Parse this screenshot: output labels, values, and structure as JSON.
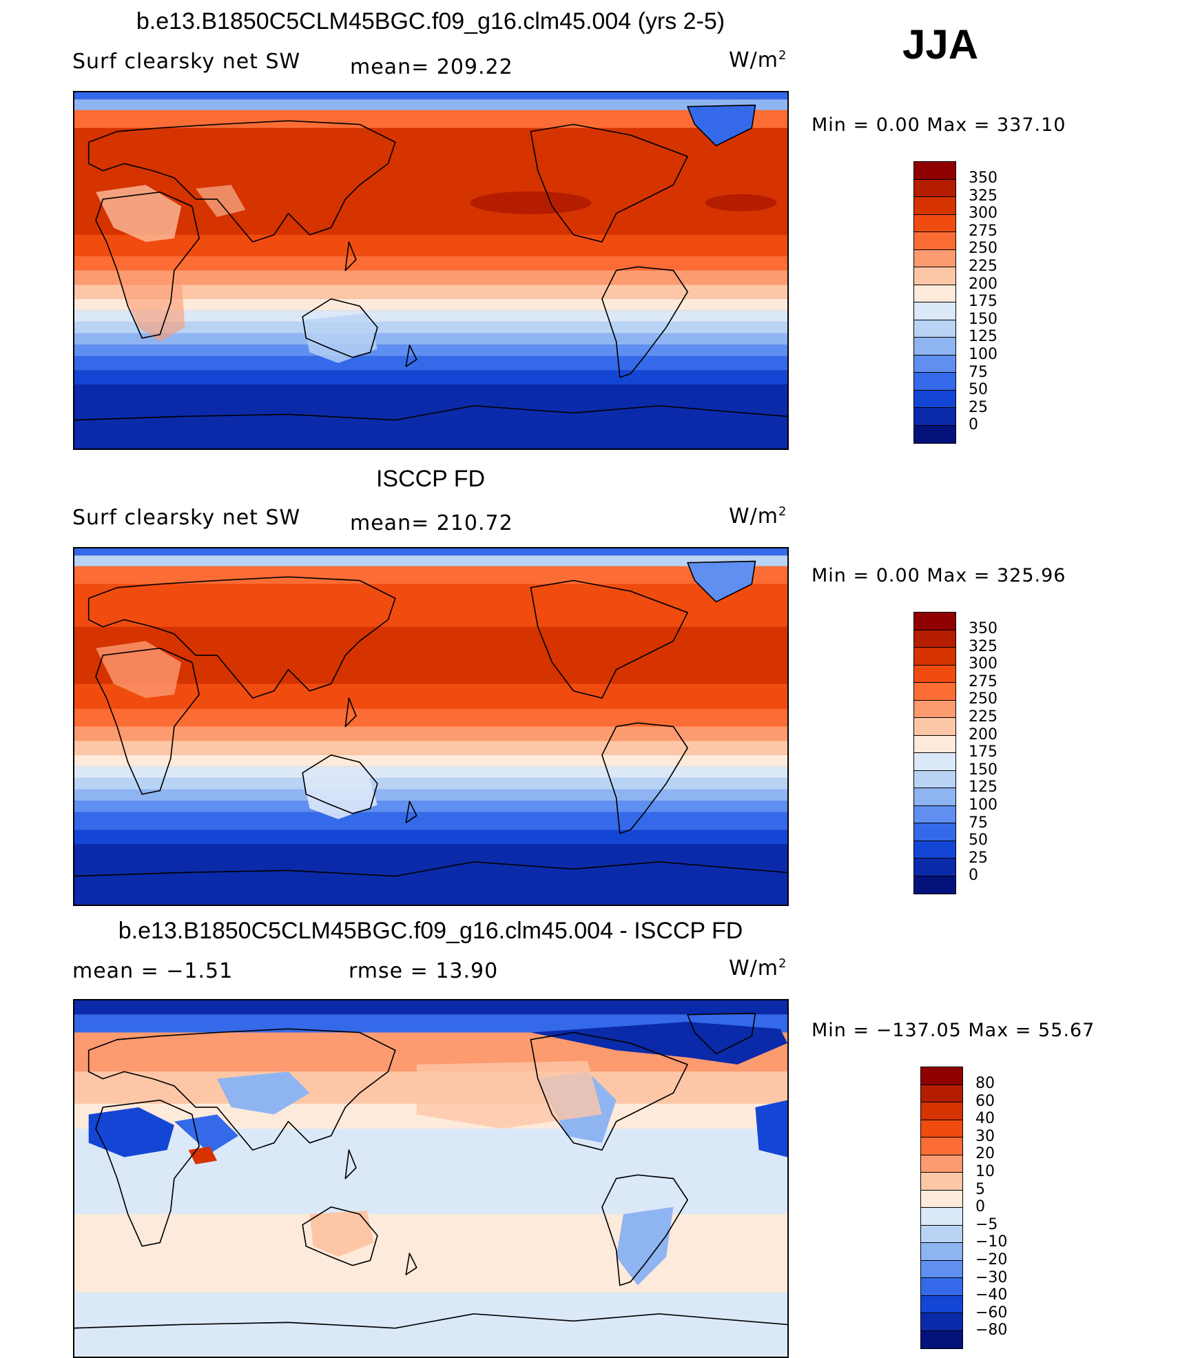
{
  "season": "JJA",
  "units_base": "W/m",
  "units_exp": "2",
  "panels": [
    {
      "title": "b.e13.B1850C5CLM45BGC.f09_g16.clm45.004 (yrs 2-5)",
      "left_label": "Surf  clearsky  net  SW",
      "center_label": "mean=  209.22",
      "minmax": "Min  =     0.00  Max  =  337.10",
      "colorbar_labels": [
        "350",
        "325",
        "300",
        "275",
        "250",
        "225",
        "200",
        "175",
        "150",
        "125",
        "100",
        "75",
        "50",
        "25",
        "0"
      ],
      "colorbar_colors": [
        "#8f0000",
        "#b51d00",
        "#d53300",
        "#f04c10",
        "#fb6d35",
        "#fc9a70",
        "#fdc7a7",
        "#fdeadb",
        "#dbe8f8",
        "#b9d3f5",
        "#8fb4f2",
        "#5f8ff0",
        "#346aea",
        "#1446d6",
        "#0a2aaa",
        "#03127a"
      ]
    },
    {
      "title": "ISCCP FD",
      "left_label": "Surf  clearsky  net  SW",
      "center_label": "mean=  210.72",
      "minmax": "Min  =     0.00  Max  =  325.96",
      "colorbar_labels": [
        "350",
        "325",
        "300",
        "275",
        "250",
        "225",
        "200",
        "175",
        "150",
        "125",
        "100",
        "75",
        "50",
        "25",
        "0"
      ],
      "colorbar_colors": [
        "#8f0000",
        "#b51d00",
        "#d53300",
        "#f04c10",
        "#fb6d35",
        "#fc9a70",
        "#fdc7a7",
        "#fdeadb",
        "#dbe8f8",
        "#b9d3f5",
        "#8fb4f2",
        "#5f8ff0",
        "#346aea",
        "#1446d6",
        "#0a2aaa",
        "#03127a"
      ]
    },
    {
      "title": "b.e13.B1850C5CLM45BGC.f09_g16.clm45.004 - ISCCP FD",
      "left_label": "mean  =    −1.51",
      "center_label": "rmse  =    13.90",
      "minmax": "Min  =  −137.05  Max  =    55.67",
      "colorbar_labels": [
        "80",
        "60",
        "40",
        "30",
        "20",
        "10",
        "5",
        "0",
        "−5",
        "−10",
        "−20",
        "−30",
        "−40",
        "−60",
        "−80"
      ],
      "colorbar_colors": [
        "#8f0000",
        "#b51d00",
        "#d53300",
        "#f04c10",
        "#fb6d35",
        "#fc9a70",
        "#fdc7a7",
        "#fdeadb",
        "#dbe8f8",
        "#b9d3f5",
        "#8fb4f2",
        "#5f8ff0",
        "#346aea",
        "#1446d6",
        "#0a2aaa",
        "#03127a"
      ]
    }
  ]
}
